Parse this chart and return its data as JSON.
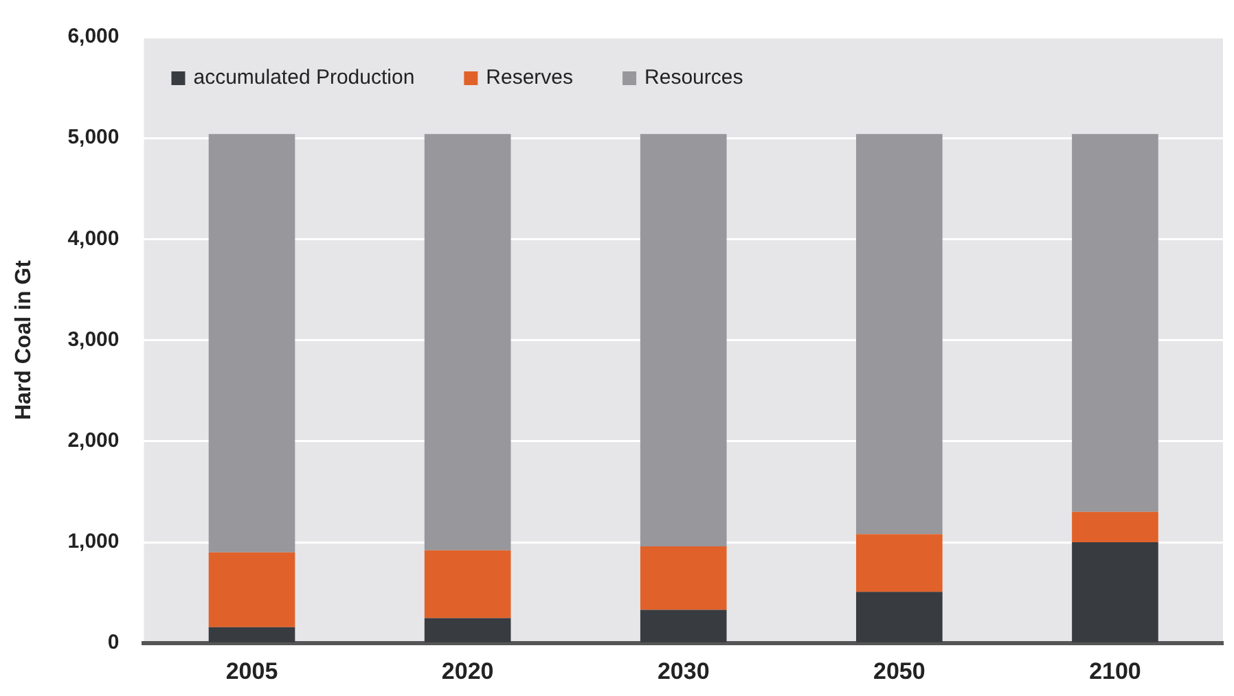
{
  "chart_data": {
    "type": "bar",
    "stacked": true,
    "ylabel": "Hard Coal in Gt",
    "categories": [
      "2005",
      "2020",
      "2030",
      "2050",
      "2100"
    ],
    "series": [
      {
        "name": "accumulated Production",
        "color": "#383b40",
        "values": [
          160,
          250,
          330,
          510,
          1000
        ]
      },
      {
        "name": "Reserves",
        "color": "#e0622a",
        "values": [
          740,
          670,
          630,
          570,
          300
        ]
      },
      {
        "name": "Resources",
        "color": "#97979c",
        "values": [
          4140,
          4120,
          4080,
          3960,
          3740
        ]
      }
    ],
    "ylim": [
      0,
      6000
    ],
    "yticks": [
      {
        "value": 0,
        "label": "0"
      },
      {
        "value": 1000,
        "label": "1,000"
      },
      {
        "value": 2000,
        "label": "2,000"
      },
      {
        "value": 3000,
        "label": "3,000"
      },
      {
        "value": 4000,
        "label": "4,000"
      },
      {
        "value": 5000,
        "label": "5,000"
      },
      {
        "value": 6000,
        "label": "6,000"
      }
    ],
    "grid": "y",
    "legend": "top left"
  }
}
